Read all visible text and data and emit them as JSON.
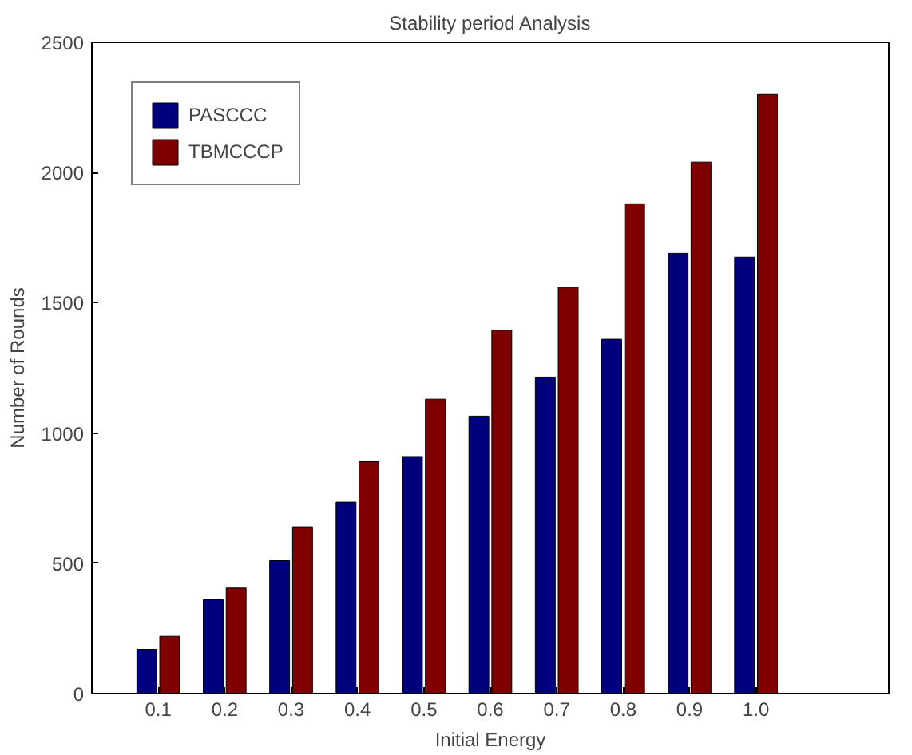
{
  "chart_data": {
    "type": "bar",
    "title": "Stability period Analysis",
    "xlabel": "Initial Energy",
    "ylabel": "Number of Rounds",
    "x": [
      0.1,
      0.2,
      0.3,
      0.4,
      0.5,
      0.6,
      0.7,
      0.8,
      0.9,
      1.0
    ],
    "series": [
      {
        "name": "PASCCC",
        "color": "#00007f",
        "values": [
          170,
          360,
          510,
          735,
          910,
          1065,
          1215,
          1360,
          1690,
          1675
        ]
      },
      {
        "name": "TBMCCCP",
        "color": "#7f0000",
        "values": [
          220,
          405,
          640,
          890,
          1130,
          1395,
          1560,
          1880,
          2040,
          2300
        ]
      }
    ],
    "xlim": [
      0,
      1.2
    ],
    "xticks": [
      0.1,
      0.2,
      0.3,
      0.4,
      0.5,
      0.6,
      0.7,
      0.8,
      0.9,
      {
        "value": 1.0,
        "label": "1.0"
      }
    ],
    "ylim": [
      0,
      2500
    ],
    "yticks": [
      0,
      500,
      1000,
      1500,
      2000,
      2500
    ],
    "grid": false,
    "legend": "top left"
  }
}
